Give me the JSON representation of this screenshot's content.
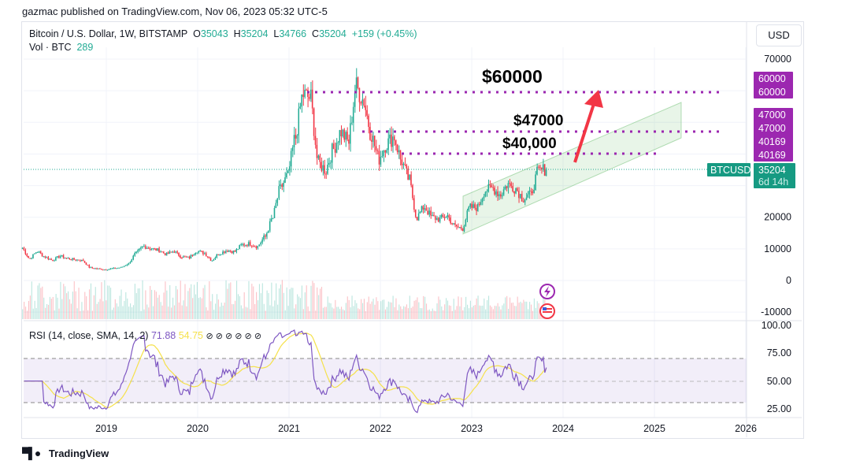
{
  "header": {
    "published": "gazmac published on TradingView.com, Nov 06, 2023 05:32 UTC-5"
  },
  "legend": {
    "symbol": "Bitcoin / U.S. Dollar, 1W, BITSTAMP",
    "o_label": "O",
    "o": "35043",
    "h_label": "H",
    "h": "35204",
    "l_label": "L",
    "l": "34766",
    "c_label": "C",
    "c": "35204",
    "change": "+159 (+0.45%)",
    "vol_label": "Vol · BTC",
    "vol": "289"
  },
  "currency_button": "USD",
  "rsi_legend": {
    "label": "RSI (14, close, SMA, 14, 2)",
    "rsi": "71.88",
    "sma": "54.75",
    "extras": "⊘ ⊘ ⊘ ⊘ ⊘ ⊘"
  },
  "annotations": {
    "target_60000": "$60000",
    "target_47000": "$47000",
    "target_40000": "$40,000"
  },
  "price_tags": {
    "l60a": "60000",
    "l60b": "60000",
    "l47a": "47000",
    "l47b": "47000",
    "l40a": "40169",
    "l40b": "40169",
    "symbol": "BTCUSD",
    "price": "35204",
    "countdown": "6d 14h"
  },
  "footer": {
    "brand": "TradingView"
  },
  "colors": {
    "up": "#22ab94",
    "down": "#f23645",
    "level": "#9c27b0",
    "rsi": "#7e57c2",
    "rsi_sma": "#f5e14a",
    "arrow": "#f23645",
    "channel": "#4caf50"
  },
  "chart_data": {
    "type": "candlestick",
    "title": "Bitcoin / U.S. Dollar, 1W, BITSTAMP",
    "xticks": [
      "2019",
      "2020",
      "2021",
      "2022",
      "2023",
      "2024",
      "2025",
      "2026"
    ],
    "yticks": [
      "70000",
      "20000",
      "10000",
      "0",
      "-10000"
    ],
    "rsi_ticks": [
      "100.00",
      "75.00",
      "50.00",
      "25.00"
    ],
    "ylim": [
      -12000,
      72000
    ],
    "monthly_close_start": "2018-02",
    "monthly_close": [
      10300,
      6900,
      9200,
      7500,
      6400,
      7700,
      7000,
      6600,
      6300,
      4000,
      3700,
      3450,
      3800,
      4100,
      5300,
      8600,
      10800,
      10100,
      9600,
      8300,
      9200,
      7500,
      7200,
      9350,
      8600,
      6400,
      8600,
      9450,
      9140,
      11300,
      11650,
      10780,
      13800,
      19700,
      29000,
      33100,
      45200,
      58800,
      57700,
      37300,
      35000,
      41500,
      47100,
      43800,
      61300,
      57000,
      46300,
      38500,
      43200,
      45500,
      37700,
      31800,
      19900,
      23300,
      20000,
      19400,
      20500,
      17200,
      16500,
      23100,
      23100,
      28500,
      29200,
      27200,
      30500,
      29200,
      26000,
      27000,
      34500,
      35204
    ],
    "levels": [
      60000,
      47000,
      40169
    ],
    "last_price": 35204
  }
}
